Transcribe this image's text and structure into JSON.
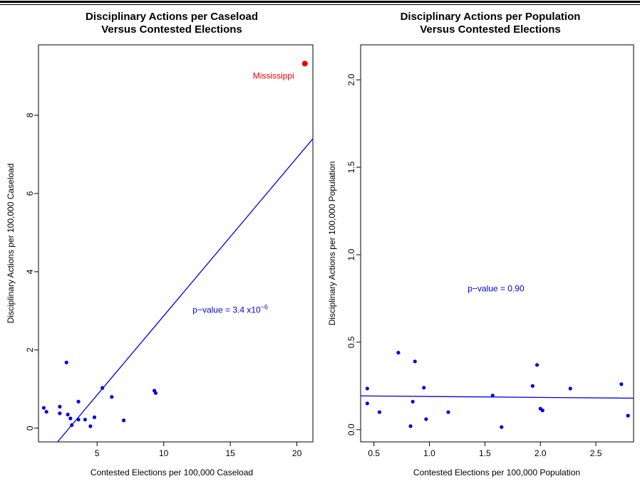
{
  "chart_data": [
    {
      "type": "scatter",
      "title": "Disciplinary Actions per Caseload",
      "subtitle": "Versus Contested Elections",
      "xlabel": "Contested Elections per 100,000 Caseload",
      "ylabel": "Disciplinary Actions per 100,000 Caseload",
      "xlim": [
        0.6,
        21.2
      ],
      "ylim": [
        -0.35,
        9.8
      ],
      "xticks": [
        5,
        10,
        15,
        20
      ],
      "yticks": [
        0,
        2,
        4,
        6,
        8
      ],
      "grid": false,
      "point_color": "#0000ee",
      "series": [
        {
          "points": [
            {
              "x": 1.0,
              "y": 0.52
            },
            {
              "x": 1.2,
              "y": 0.42
            },
            {
              "x": 2.2,
              "y": 0.55
            },
            {
              "x": 2.2,
              "y": 0.38
            },
            {
              "x": 2.7,
              "y": 1.68
            },
            {
              "x": 2.8,
              "y": 0.35
            },
            {
              "x": 3.0,
              "y": 0.25
            },
            {
              "x": 3.1,
              "y": 0.08
            },
            {
              "x": 3.6,
              "y": 0.68
            },
            {
              "x": 3.6,
              "y": 0.22
            },
            {
              "x": 4.1,
              "y": 0.22
            },
            {
              "x": 4.5,
              "y": 0.05
            },
            {
              "x": 4.8,
              "y": 0.28
            },
            {
              "x": 5.4,
              "y": 1.03
            },
            {
              "x": 6.1,
              "y": 0.8
            },
            {
              "x": 7.0,
              "y": 0.2
            },
            {
              "x": 9.3,
              "y": 0.96
            },
            {
              "x": 9.4,
              "y": 0.9
            }
          ]
        }
      ],
      "highlight": {
        "label": "Mississippi",
        "x": 20.6,
        "y": 9.32,
        "color": "#ee0000"
      },
      "regression_line": {
        "x1": 0.6,
        "y1": -0.93,
        "x2": 21.2,
        "y2": 7.4,
        "color": "#0000ee"
      },
      "annotation": {
        "prefix": "p−value = 3.4 x10",
        "exponent": "−6",
        "x": 15.0,
        "y": 2.95,
        "color": "#0000ee"
      }
    },
    {
      "type": "scatter",
      "title": "Disciplinary Actions per Population",
      "subtitle": "Versus Contested Elections",
      "xlabel": "Contested Elections per 100,000 Population",
      "ylabel": "Disciplinary Actions per 100,000 Population",
      "xlim": [
        0.38,
        2.84
      ],
      "ylim": [
        -0.07,
        2.2
      ],
      "xticks": [
        "0.5",
        "1.0",
        "1.5",
        "2.0",
        "2.5"
      ],
      "yticks": [
        "0.0",
        "0.5",
        "1.0",
        "1.5",
        "2.0"
      ],
      "grid": false,
      "point_color": "#0000ee",
      "series": [
        {
          "points": [
            {
              "x": 0.44,
              "y": 0.235
            },
            {
              "x": 0.44,
              "y": 0.15
            },
            {
              "x": 0.55,
              "y": 0.1
            },
            {
              "x": 0.72,
              "y": 0.44
            },
            {
              "x": 0.83,
              "y": 0.02
            },
            {
              "x": 0.85,
              "y": 0.16
            },
            {
              "x": 0.87,
              "y": 0.39
            },
            {
              "x": 0.95,
              "y": 0.24
            },
            {
              "x": 0.97,
              "y": 0.06
            },
            {
              "x": 1.17,
              "y": 0.1
            },
            {
              "x": 1.57,
              "y": 0.195
            },
            {
              "x": 1.65,
              "y": 0.015
            },
            {
              "x": 1.93,
              "y": 0.25
            },
            {
              "x": 1.97,
              "y": 0.37
            },
            {
              "x": 2.0,
              "y": 0.12
            },
            {
              "x": 2.02,
              "y": 0.11
            },
            {
              "x": 2.27,
              "y": 0.235
            },
            {
              "x": 2.73,
              "y": 0.26
            },
            {
              "x": 2.79,
              "y": 0.08
            }
          ]
        }
      ],
      "regression_line": {
        "x1": 0.38,
        "y1": 0.193,
        "x2": 2.84,
        "y2": 0.18,
        "color": "#0000ee"
      },
      "annotation": {
        "prefix": "p−value = 0.90",
        "exponent": "",
        "x": 1.6,
        "y": 0.79,
        "color": "#0000ee"
      }
    }
  ]
}
